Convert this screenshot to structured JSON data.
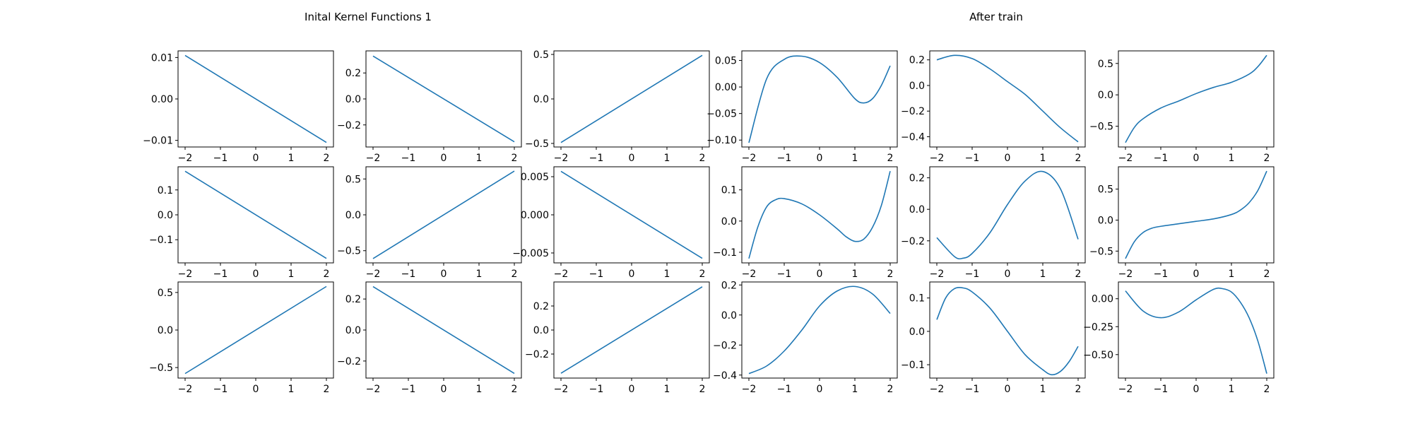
{
  "figure": {
    "left_title": "Inital Kernel Functions 1",
    "right_title": "After train",
    "line_color": "#1f77b4"
  },
  "chart_data": [
    {
      "type": "line",
      "group": "initial",
      "row": 1,
      "col": 1,
      "x": [
        -2,
        2
      ],
      "series": [
        {
          "y": [
            0.0105,
            -0.0105
          ]
        }
      ],
      "xlim": [
        -2.2,
        2.2
      ],
      "ylim": [
        -0.0116,
        0.0116
      ],
      "xticks": [
        -2,
        -1,
        0,
        1,
        2
      ],
      "xtick_labels": [
        "−2",
        "−1",
        "0",
        "1",
        "2"
      ],
      "yticks": [
        0.01,
        0,
        -0.01
      ],
      "ytick_labels": [
        "0.01",
        "0.00",
        "−0.01"
      ]
    },
    {
      "type": "line",
      "group": "initial",
      "row": 1,
      "col": 2,
      "x": [
        -2,
        2
      ],
      "series": [
        {
          "y": [
            0.33,
            -0.33
          ]
        }
      ],
      "xlim": [
        -2.2,
        2.2
      ],
      "ylim": [
        -0.37,
        0.37
      ],
      "xticks": [
        -2,
        -1,
        0,
        1,
        2
      ],
      "xtick_labels": [
        "−2",
        "−1",
        "0",
        "1",
        "2"
      ],
      "yticks": [
        0.2,
        0,
        -0.2
      ],
      "ytick_labels": [
        "0.2",
        "0.0",
        "−0.2"
      ]
    },
    {
      "type": "line",
      "group": "initial",
      "row": 1,
      "col": 3,
      "x": [
        -2,
        2
      ],
      "series": [
        {
          "y": [
            -0.49,
            0.49
          ]
        }
      ],
      "xlim": [
        -2.2,
        2.2
      ],
      "ylim": [
        -0.54,
        0.54
      ],
      "xticks": [
        -2,
        -1,
        0,
        1,
        2
      ],
      "xtick_labels": [
        "−2",
        "−1",
        "0",
        "1",
        "2"
      ],
      "yticks": [
        0.5,
        0,
        -0.5
      ],
      "ytick_labels": [
        "0.5",
        "0.0",
        "−0.5"
      ]
    },
    {
      "type": "line",
      "group": "after_train",
      "row": 1,
      "col": 4,
      "x": [
        -2,
        -1.5,
        -1,
        -0.5,
        0,
        0.5,
        1,
        1.25,
        1.5,
        1.75,
        2
      ],
      "series": [
        {
          "y": [
            -0.105,
            0.015,
            0.052,
            0.058,
            0.046,
            0.018,
            -0.022,
            -0.03,
            -0.022,
            0.003,
            0.04
          ]
        }
      ],
      "xlim": [
        -2.2,
        2.2
      ],
      "ylim": [
        -0.113,
        0.068
      ],
      "xticks": [
        -2,
        -1,
        0,
        1,
        2
      ],
      "xtick_labels": [
        "−2",
        "−1",
        "0",
        "1",
        "2"
      ],
      "yticks": [
        0.05,
        0,
        -0.05,
        -0.1
      ],
      "ytick_labels": [
        "0.05",
        "0.00",
        "−0.05",
        "−0.10"
      ]
    },
    {
      "type": "line",
      "group": "after_train",
      "row": 1,
      "col": 5,
      "x": [
        -2,
        -1.5,
        -1,
        -0.5,
        0,
        0.5,
        1,
        1.5,
        2
      ],
      "series": [
        {
          "y": [
            0.2,
            0.235,
            0.21,
            0.13,
            0.03,
            -0.07,
            -0.2,
            -0.33,
            -0.44
          ]
        }
      ],
      "xlim": [
        -2.2,
        2.2
      ],
      "ylim": [
        -0.48,
        0.27
      ],
      "xticks": [
        -2,
        -1,
        0,
        1,
        2
      ],
      "xtick_labels": [
        "−2",
        "−1",
        "0",
        "1",
        "2"
      ],
      "yticks": [
        0.2,
        0,
        -0.2,
        -0.4
      ],
      "ytick_labels": [
        "0.2",
        "0.0",
        "−0.2",
        "−0.4"
      ]
    },
    {
      "type": "line",
      "group": "after_train",
      "row": 1,
      "col": 6,
      "x": [
        -2,
        -1.75,
        -1.5,
        -1,
        -0.5,
        0,
        0.5,
        1,
        1.5,
        1.75,
        2
      ],
      "series": [
        {
          "y": [
            -0.76,
            -0.52,
            -0.38,
            -0.21,
            -0.1,
            0.02,
            0.12,
            0.2,
            0.33,
            0.45,
            0.63
          ]
        }
      ],
      "xlim": [
        -2.2,
        2.2
      ],
      "ylim": [
        -0.83,
        0.7
      ],
      "xticks": [
        -2,
        -1,
        0,
        1,
        2
      ],
      "xtick_labels": [
        "−2",
        "−1",
        "0",
        "1",
        "2"
      ],
      "yticks": [
        0.5,
        0,
        -0.5
      ],
      "ytick_labels": [
        "0.5",
        "0.0",
        "−0.5"
      ]
    },
    {
      "type": "line",
      "group": "initial",
      "row": 2,
      "col": 1,
      "x": [
        -2,
        2
      ],
      "series": [
        {
          "y": [
            0.175,
            -0.175
          ]
        }
      ],
      "xlim": [
        -2.2,
        2.2
      ],
      "ylim": [
        -0.193,
        0.193
      ],
      "xticks": [
        -2,
        -1,
        0,
        1,
        2
      ],
      "xtick_labels": [
        "−2",
        "−1",
        "0",
        "1",
        "2"
      ],
      "yticks": [
        0.1,
        0,
        -0.1
      ],
      "ytick_labels": [
        "0.1",
        "0.0",
        "−0.1"
      ]
    },
    {
      "type": "line",
      "group": "initial",
      "row": 2,
      "col": 2,
      "x": [
        -2,
        2
      ],
      "series": [
        {
          "y": [
            -0.61,
            0.61
          ]
        }
      ],
      "xlim": [
        -2.2,
        2.2
      ],
      "ylim": [
        -0.67,
        0.67
      ],
      "xticks": [
        -2,
        -1,
        0,
        1,
        2
      ],
      "xtick_labels": [
        "−2",
        "−1",
        "0",
        "1",
        "2"
      ],
      "yticks": [
        0.5,
        0,
        -0.5
      ],
      "ytick_labels": [
        "0.5",
        "0.0",
        "−0.5"
      ]
    },
    {
      "type": "line",
      "group": "initial",
      "row": 2,
      "col": 3,
      "x": [
        -2,
        2
      ],
      "series": [
        {
          "y": [
            0.0057,
            -0.0057
          ]
        }
      ],
      "xlim": [
        -2.2,
        2.2
      ],
      "ylim": [
        -0.0063,
        0.0063
      ],
      "xticks": [
        -2,
        -1,
        0,
        1,
        2
      ],
      "xtick_labels": [
        "−2",
        "−1",
        "0",
        "1",
        "2"
      ],
      "yticks": [
        0.005,
        0,
        -0.005
      ],
      "ytick_labels": [
        "0.005",
        "0.000",
        "−0.005"
      ]
    },
    {
      "type": "line",
      "group": "after_train",
      "row": 2,
      "col": 4,
      "x": [
        -2,
        -1.75,
        -1.5,
        -1.25,
        -1,
        -0.5,
        0,
        0.5,
        0.75,
        1,
        1.25,
        1.5,
        1.75,
        2
      ],
      "series": [
        {
          "y": [
            -0.12,
            -0.02,
            0.045,
            0.068,
            0.072,
            0.055,
            0.02,
            -0.025,
            -0.05,
            -0.065,
            -0.058,
            -0.02,
            0.05,
            0.16
          ]
        }
      ],
      "xlim": [
        -2.2,
        2.2
      ],
      "ylim": [
        -0.134,
        0.174
      ],
      "xticks": [
        -2,
        -1,
        0,
        1,
        2
      ],
      "xtick_labels": [
        "−2",
        "−1",
        "0",
        "1",
        "2"
      ],
      "yticks": [
        0.1,
        0,
        -0.1
      ],
      "ytick_labels": [
        "0.1",
        "0.0",
        "−0.1"
      ]
    },
    {
      "type": "line",
      "group": "after_train",
      "row": 2,
      "col": 5,
      "x": [
        -2,
        -1.5,
        -1.25,
        -1,
        -0.5,
        0,
        0.5,
        1,
        1.5,
        2
      ],
      "series": [
        {
          "y": [
            -0.18,
            -0.3,
            -0.31,
            -0.28,
            -0.15,
            0.03,
            0.18,
            0.24,
            0.13,
            -0.19
          ]
        }
      ],
      "xlim": [
        -2.2,
        2.2
      ],
      "ylim": [
        -0.34,
        0.27
      ],
      "xticks": [
        -2,
        -1,
        0,
        1,
        2
      ],
      "xtick_labels": [
        "−2",
        "−1",
        "0",
        "1",
        "2"
      ],
      "yticks": [
        0.2,
        0,
        -0.2
      ],
      "ytick_labels": [
        "0.2",
        "0.0",
        "−0.2"
      ]
    },
    {
      "type": "line",
      "group": "after_train",
      "row": 2,
      "col": 6,
      "x": [
        -2,
        -1.75,
        -1.5,
        -1.25,
        -1,
        -0.5,
        0,
        0.5,
        1,
        1.25,
        1.5,
        1.75,
        2
      ],
      "series": [
        {
          "y": [
            -0.62,
            -0.35,
            -0.2,
            -0.13,
            -0.1,
            -0.06,
            -0.02,
            0.02,
            0.09,
            0.16,
            0.28,
            0.48,
            0.79
          ]
        }
      ],
      "xlim": [
        -2.2,
        2.2
      ],
      "ylim": [
        -0.69,
        0.86
      ],
      "xticks": [
        -2,
        -1,
        0,
        1,
        2
      ],
      "xtick_labels": [
        "−2",
        "−1",
        "0",
        "1",
        "2"
      ],
      "yticks": [
        0.5,
        0,
        -0.5
      ],
      "ytick_labels": [
        "0.5",
        "0.0",
        "−0.5"
      ]
    },
    {
      "type": "line",
      "group": "initial",
      "row": 3,
      "col": 1,
      "x": [
        -2,
        2
      ],
      "series": [
        {
          "y": [
            -0.58,
            0.58
          ]
        }
      ],
      "xlim": [
        -2.2,
        2.2
      ],
      "ylim": [
        -0.64,
        0.64
      ],
      "xticks": [
        -2,
        -1,
        0,
        1,
        2
      ],
      "xtick_labels": [
        "−2",
        "−1",
        "0",
        "1",
        "2"
      ],
      "yticks": [
        0.5,
        0,
        -0.5
      ],
      "ytick_labels": [
        "0.5",
        "0.0",
        "−0.5"
      ]
    },
    {
      "type": "line",
      "group": "initial",
      "row": 3,
      "col": 2,
      "x": [
        -2,
        2
      ],
      "series": [
        {
          "y": [
            0.28,
            -0.28
          ]
        }
      ],
      "xlim": [
        -2.2,
        2.2
      ],
      "ylim": [
        -0.31,
        0.31
      ],
      "xticks": [
        -2,
        -1,
        0,
        1,
        2
      ],
      "xtick_labels": [
        "−2",
        "−1",
        "0",
        "1",
        "2"
      ],
      "yticks": [
        0.2,
        0,
        -0.2
      ],
      "ytick_labels": [
        "0.2",
        "0.0",
        "−0.2"
      ]
    },
    {
      "type": "line",
      "group": "initial",
      "row": 3,
      "col": 3,
      "x": [
        -2,
        2
      ],
      "series": [
        {
          "y": [
            -0.36,
            0.36
          ]
        }
      ],
      "xlim": [
        -2.2,
        2.2
      ],
      "ylim": [
        -0.4,
        0.4
      ],
      "xticks": [
        -2,
        -1,
        0,
        1,
        2
      ],
      "xtick_labels": [
        "−2",
        "−1",
        "0",
        "1",
        "2"
      ],
      "yticks": [
        0.2,
        0,
        -0.2
      ],
      "ytick_labels": [
        "0.2",
        "0.0",
        "−0.2"
      ]
    },
    {
      "type": "line",
      "group": "after_train",
      "row": 3,
      "col": 4,
      "x": [
        -2,
        -1.5,
        -1,
        -0.5,
        0,
        0.5,
        1,
        1.5,
        2
      ],
      "series": [
        {
          "y": [
            -0.39,
            -0.34,
            -0.24,
            -0.1,
            0.06,
            0.16,
            0.19,
            0.14,
            0.01
          ]
        }
      ],
      "xlim": [
        -2.2,
        2.2
      ],
      "ylim": [
        -0.42,
        0.22
      ],
      "xticks": [
        -2,
        -1,
        0,
        1,
        2
      ],
      "xtick_labels": [
        "−2",
        "−1",
        "0",
        "1",
        "2"
      ],
      "yticks": [
        0.2,
        0,
        -0.2,
        -0.4
      ],
      "ytick_labels": [
        "0.2",
        "0.0",
        "−0.2",
        "−0.4"
      ]
    },
    {
      "type": "line",
      "group": "after_train",
      "row": 3,
      "col": 5,
      "x": [
        -2,
        -1.75,
        -1.5,
        -1.25,
        -1,
        -0.5,
        0,
        0.5,
        1,
        1.25,
        1.5,
        1.75,
        2
      ],
      "series": [
        {
          "y": [
            0.035,
            0.1,
            0.128,
            0.13,
            0.118,
            0.07,
            0.0,
            -0.07,
            -0.115,
            -0.13,
            -0.12,
            -0.09,
            -0.045
          ]
        }
      ],
      "xlim": [
        -2.2,
        2.2
      ],
      "ylim": [
        -0.14,
        0.148
      ],
      "xticks": [
        -2,
        -1,
        0,
        1,
        2
      ],
      "xtick_labels": [
        "−2",
        "−1",
        "0",
        "1",
        "2"
      ],
      "yticks": [
        0.1,
        0,
        -0.1
      ],
      "ytick_labels": [
        "0.1",
        "0.0",
        "−0.1"
      ]
    },
    {
      "type": "line",
      "group": "after_train",
      "row": 3,
      "col": 6,
      "x": [
        -2,
        -1.5,
        -1,
        -0.5,
        0,
        0.5,
        0.75,
        1,
        1.25,
        1.5,
        1.75,
        2
      ],
      "series": [
        {
          "y": [
            0.07,
            -0.11,
            -0.17,
            -0.12,
            -0.01,
            0.085,
            0.09,
            0.06,
            -0.03,
            -0.17,
            -0.38,
            -0.67
          ]
        }
      ],
      "xlim": [
        -2.2,
        2.2
      ],
      "ylim": [
        -0.71,
        0.15
      ],
      "xticks": [
        -2,
        -1,
        0,
        1,
        2
      ],
      "xtick_labels": [
        "−2",
        "−1",
        "0",
        "1",
        "2"
      ],
      "yticks": [
        0,
        -0.25,
        -0.5
      ],
      "ytick_labels": [
        "0.00",
        "−0.25",
        "−0.50"
      ]
    }
  ]
}
